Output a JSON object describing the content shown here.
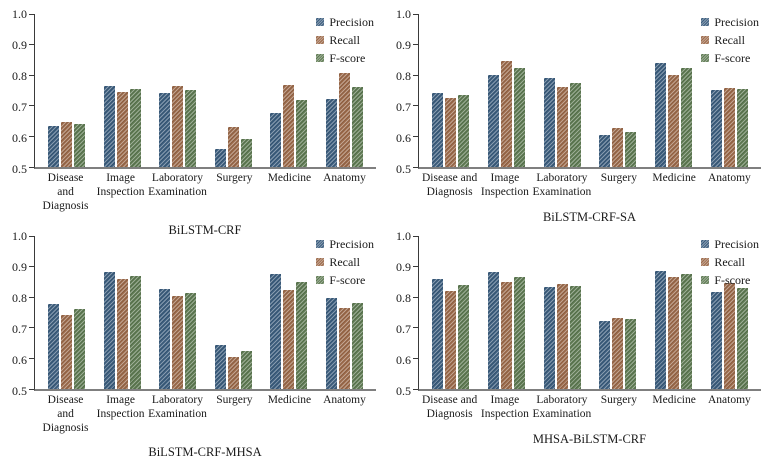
{
  "figure": {
    "legend": {
      "position": "top-right",
      "items": [
        {
          "label": "Precision",
          "color": "#3b5d7e"
        },
        {
          "label": "Recall",
          "color": "#9c6a4a"
        },
        {
          "label": "F-score",
          "color": "#5e7a52"
        }
      ]
    },
    "axis": {
      "yticks": [
        "1.0",
        "0.9",
        "0.8",
        "0.7",
        "0.6",
        "0.5"
      ],
      "ymin": 0.5,
      "ymax": 1.0,
      "grid": false
    }
  },
  "chart_data": [
    {
      "type": "bar",
      "title": "BiLSTM-CRF",
      "categories": [
        "Disease and\nDiagnosis",
        "Image\nInspection",
        "Laboratory\nExamination",
        "Surgery",
        "Medicine",
        "Anatomy"
      ],
      "category_slugs": [
        "disease-and-diagnosis",
        "image-inspection",
        "laboratory-examination",
        "surgery",
        "medicine",
        "anatomy"
      ],
      "series": [
        {
          "name": "Precision",
          "values": [
            0.635,
            0.766,
            0.741,
            0.558,
            0.676,
            0.722
          ]
        },
        {
          "name": "Recall",
          "values": [
            0.648,
            0.746,
            0.764,
            0.632,
            0.768,
            0.807
          ]
        },
        {
          "name": "F-score",
          "values": [
            0.639,
            0.756,
            0.753,
            0.592,
            0.72,
            0.762
          ]
        }
      ],
      "ylim": [
        0.5,
        1.0
      ],
      "legend_position": "top-right",
      "grid": false
    },
    {
      "type": "bar",
      "title": "BiLSTM-CRF-SA",
      "categories": [
        "Disease and\nDiagnosis",
        "Image\nInspection",
        "Laboratory\nExamination",
        "Surgery",
        "Medicine",
        "Anatomy"
      ],
      "category_slugs": [
        "disease-and-diagnosis",
        "image-inspection",
        "laboratory-examination",
        "surgery",
        "medicine",
        "anatomy"
      ],
      "series": [
        {
          "name": "Precision",
          "values": [
            0.741,
            0.8,
            0.791,
            0.604,
            0.84,
            0.752
          ]
        },
        {
          "name": "Recall",
          "values": [
            0.726,
            0.845,
            0.761,
            0.627,
            0.802,
            0.758
          ]
        },
        {
          "name": "F-score",
          "values": [
            0.734,
            0.823,
            0.776,
            0.615,
            0.822,
            0.755
          ]
        }
      ],
      "ylim": [
        0.5,
        1.0
      ],
      "legend_position": "top-right",
      "grid": false
    },
    {
      "type": "bar",
      "title": "BiLSTM-CRF-MHSA",
      "categories": [
        "Disease and\nDiagnosis",
        "Image\nInspection",
        "Laboratory\nExamination",
        "Surgery",
        "Medicine",
        "Anatomy"
      ],
      "category_slugs": [
        "disease-and-diagnosis",
        "image-inspection",
        "laboratory-examination",
        "surgery",
        "medicine",
        "anatomy"
      ],
      "series": [
        {
          "name": "Precision",
          "values": [
            0.778,
            0.881,
            0.826,
            0.644,
            0.875,
            0.796
          ]
        },
        {
          "name": "Recall",
          "values": [
            0.743,
            0.86,
            0.804,
            0.606,
            0.824,
            0.765
          ]
        },
        {
          "name": "F-score",
          "values": [
            0.76,
            0.87,
            0.815,
            0.624,
            0.849,
            0.78
          ]
        }
      ],
      "ylim": [
        0.5,
        1.0
      ],
      "legend_position": "top-right",
      "grid": false
    },
    {
      "type": "bar",
      "title": "MHSA-BiLSTM-CRF",
      "categories": [
        "Disease and\nDiagnosis",
        "Image\nInspection",
        "Laboratory\nExamination",
        "Surgery",
        "Medicine",
        "Anatomy"
      ],
      "category_slugs": [
        "disease-and-diagnosis",
        "image-inspection",
        "laboratory-examination",
        "surgery",
        "medicine",
        "anatomy"
      ],
      "series": [
        {
          "name": "Precision",
          "values": [
            0.86,
            0.884,
            0.832,
            0.723,
            0.886,
            0.816
          ]
        },
        {
          "name": "Recall",
          "values": [
            0.819,
            0.85,
            0.843,
            0.731,
            0.867,
            0.845
          ]
        },
        {
          "name": "F-score",
          "values": [
            0.839,
            0.867,
            0.837,
            0.728,
            0.876,
            0.831
          ]
        }
      ],
      "ylim": [
        0.5,
        1.0
      ],
      "legend_position": "top-right",
      "grid": false
    }
  ]
}
